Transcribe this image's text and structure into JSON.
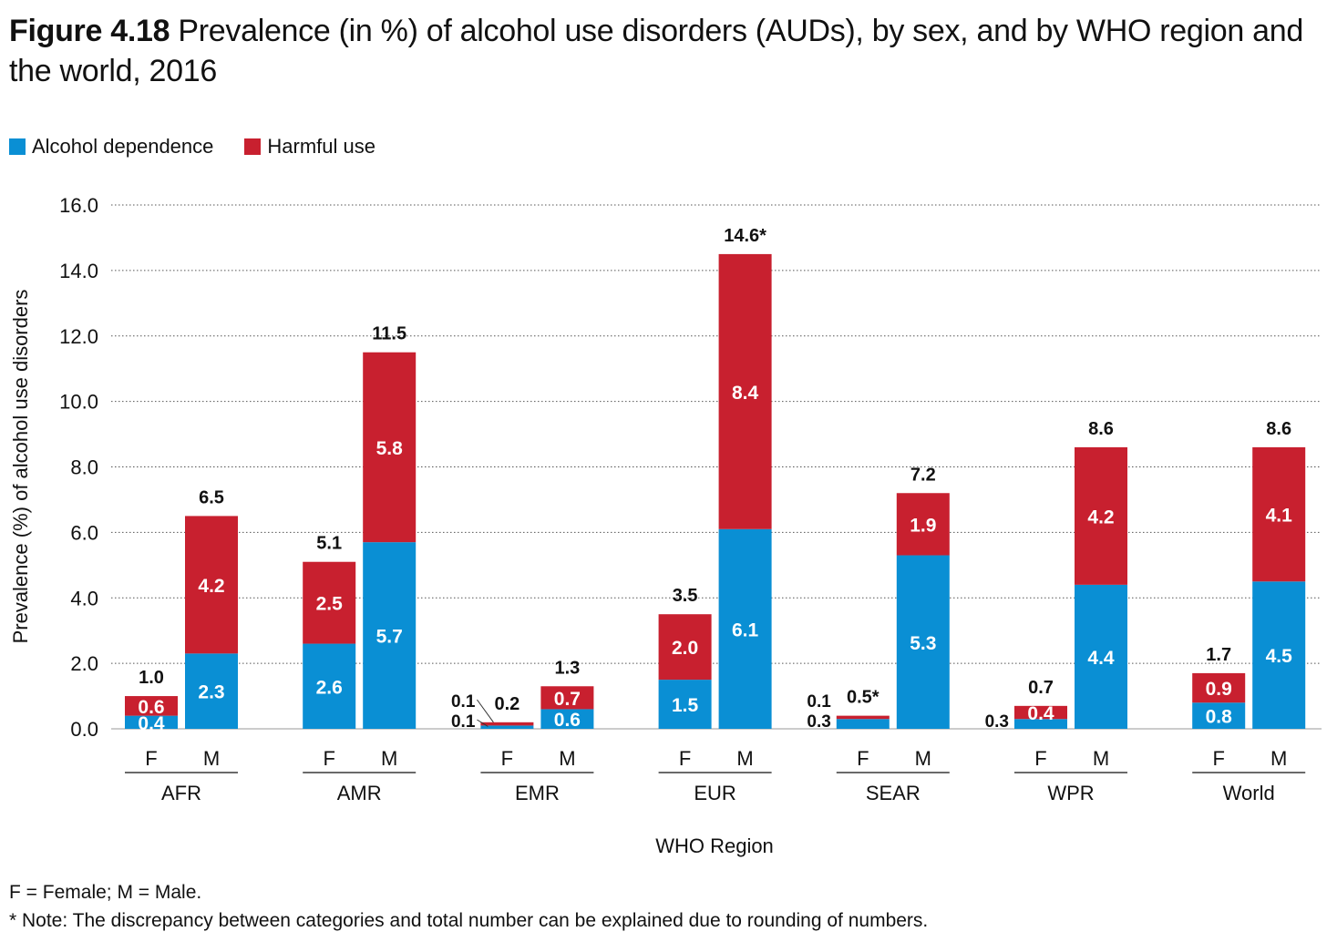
{
  "title": {
    "figure_label": "Figure 4.18",
    "text": "Prevalence (in %) of alcohol use disorders (AUDs), by sex, and by WHO region and the world, 2016"
  },
  "colors": {
    "dependence": "#0a8fd4",
    "harmful": "#c8202f"
  },
  "notes": {
    "line1": "F = Female; M = Male.",
    "line2": "* Note: The discrepancy between categories and total number can be explained due to rounding of numbers."
  },
  "chart_data": {
    "type": "bar",
    "stacked": true,
    "ylabel": "Prevalence (%) of alcohol use disorders",
    "xlabel": "WHO Region",
    "ylim": [
      0,
      16
    ],
    "yticks": [
      "0.0",
      "2.0",
      "4.0",
      "6.0",
      "8.0",
      "10.0",
      "12.0",
      "14.0",
      "16.0"
    ],
    "grid": true,
    "legend_position": "top-left",
    "regions": [
      "AFR",
      "AMR",
      "EMR",
      "EUR",
      "SEAR",
      "WPR",
      "World"
    ],
    "sexes": [
      "F",
      "M"
    ],
    "series": [
      {
        "name": "Alcohol dependence",
        "values": [
          0.4,
          2.3,
          2.6,
          5.7,
          0.1,
          0.6,
          1.5,
          6.1,
          0.3,
          5.3,
          0.3,
          4.4,
          0.8,
          4.5
        ],
        "labels": [
          "0.4",
          "2.3",
          "2.6",
          "5.7",
          "0.1",
          "0.6",
          "1.5",
          "6.1",
          "0.3",
          "5.3",
          "0.3",
          "4.4",
          "0.8",
          "4.5"
        ]
      },
      {
        "name": "Harmful use",
        "values": [
          0.6,
          4.2,
          2.5,
          5.8,
          0.1,
          0.7,
          2.0,
          8.4,
          0.1,
          1.9,
          0.4,
          4.2,
          0.9,
          4.1
        ],
        "labels": [
          "0.6",
          "4.2",
          "2.5",
          "5.8",
          "0.1",
          "0.7",
          "2.0",
          "8.4",
          "0.1",
          "1.9",
          "0.4",
          "4.2",
          "0.9",
          "4.1"
        ]
      }
    ],
    "totals": [
      1.0,
      6.5,
      5.1,
      11.5,
      0.2,
      1.3,
      3.5,
      14.6,
      0.5,
      7.2,
      0.7,
      8.6,
      1.7,
      8.6
    ],
    "total_labels": [
      "1.0",
      "6.5",
      "5.1",
      "11.5",
      "0.2",
      "1.3",
      "3.5",
      "14.6*",
      "0.5*",
      "7.2",
      "0.7",
      "8.6",
      "1.7",
      "8.6"
    ]
  }
}
